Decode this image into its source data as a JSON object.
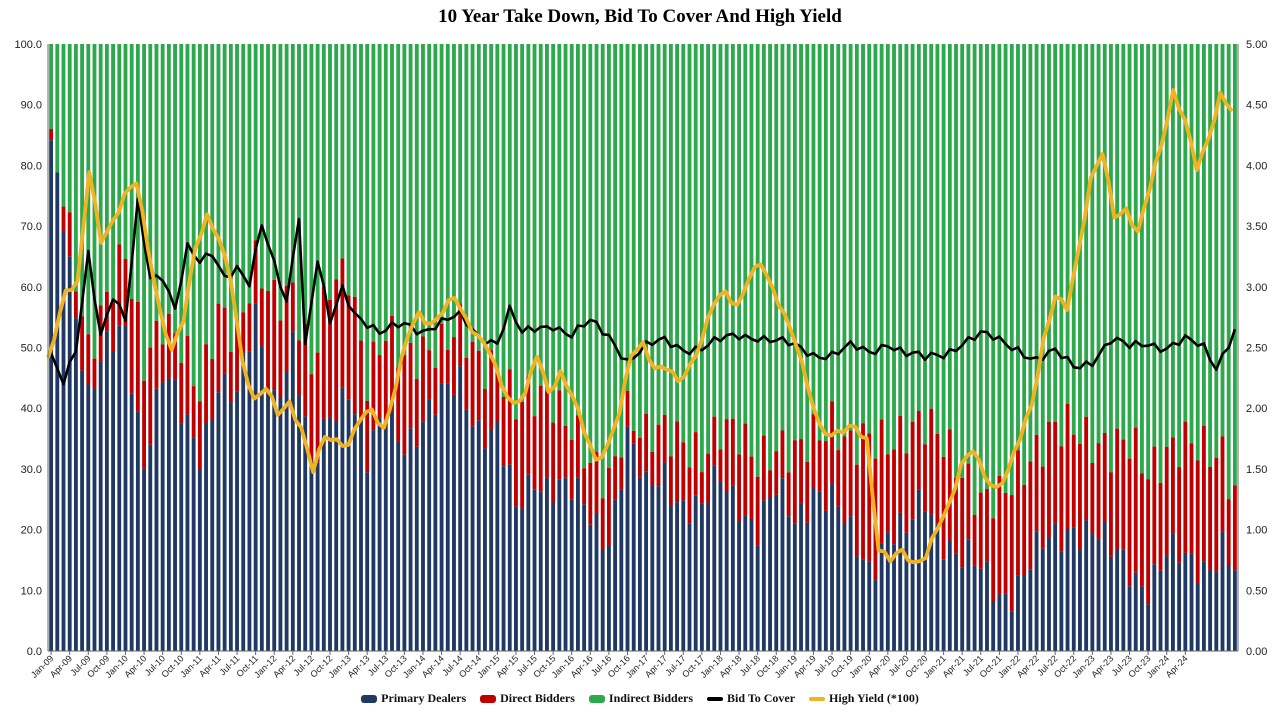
{
  "chart_data": {
    "type": "bar",
    "stacked": true,
    "title": "10 Year Take Down, Bid To Cover And High Yield",
    "y_left": {
      "min": 0,
      "max": 100,
      "ticks": [
        "0.0",
        "10.0",
        "20.0",
        "30.0",
        "40.0",
        "50.0",
        "60.0",
        "70.0",
        "80.0",
        "90.0",
        "100.0"
      ]
    },
    "y_right": {
      "min": 0,
      "max": 5,
      "ticks": [
        "0.00",
        "0.50",
        "1.00",
        "1.50",
        "2.00",
        "2.50",
        "3.00",
        "3.50",
        "4.00",
        "4.50",
        "5.00"
      ]
    },
    "x_tick_labels": [
      "Jan-09",
      "Apr-09",
      "Jul-09",
      "Oct-09",
      "Jan-10",
      "Apr-10",
      "Jul-10",
      "Oct-10",
      "Jan-11",
      "Apr-11",
      "Jul-11",
      "Oct-11",
      "Jan-12",
      "Apr-12",
      "Jul-12",
      "Oct-12",
      "Jan-13",
      "Apr-13",
      "Jul-13",
      "Oct-13",
      "Jan-14",
      "Apr-14",
      "Jul-14",
      "Oct-14",
      "Jan-15",
      "Apr-15",
      "Jul-15",
      "Oct-15",
      "Jan-16",
      "Apr-16",
      "Jul-16",
      "Oct-16",
      "Jan-17",
      "Apr-17",
      "Jul-17",
      "Oct-17",
      "Jan-18",
      "Apr-18",
      "Jul-18",
      "Oct-18",
      "Jan-19",
      "Apr-19",
      "Jul-19",
      "Oct-19",
      "Jan-20",
      "Apr-20",
      "Jul-20",
      "Oct-20",
      "Jan-21",
      "Apr-21",
      "Jul-21",
      "Oct-21",
      "Jan-22",
      "Apr-22",
      "Jul-22",
      "Oct-22",
      "Jan-23",
      "Apr-23",
      "Jul-23",
      "Oct-23",
      "Jan-24",
      "Apr-24"
    ],
    "anchors": {
      "primary_dealers": [
        [
          0,
          82
        ],
        [
          2,
          73
        ],
        [
          6,
          42
        ],
        [
          9,
          48
        ],
        [
          12,
          53
        ],
        [
          15,
          33
        ],
        [
          18,
          45
        ],
        [
          21,
          38
        ],
        [
          24,
          34
        ],
        [
          27,
          45
        ],
        [
          30,
          40
        ],
        [
          33,
          55
        ],
        [
          36,
          43
        ],
        [
          39,
          50
        ],
        [
          42,
          28
        ],
        [
          45,
          40
        ],
        [
          48,
          45
        ],
        [
          51,
          30
        ],
        [
          54,
          38
        ],
        [
          57,
          36
        ],
        [
          60,
          38
        ],
        [
          63,
          40
        ],
        [
          66,
          45
        ],
        [
          69,
          38
        ],
        [
          72,
          35
        ],
        [
          75,
          22
        ],
        [
          78,
          30
        ],
        [
          81,
          28
        ],
        [
          84,
          25
        ],
        [
          87,
          22
        ],
        [
          90,
          20
        ],
        [
          93,
          35
        ],
        [
          96,
          25
        ],
        [
          99,
          30
        ],
        [
          102,
          25
        ],
        [
          105,
          22
        ],
        [
          108,
          28
        ],
        [
          111,
          26
        ],
        [
          114,
          20
        ],
        [
          117,
          25
        ],
        [
          120,
          22
        ],
        [
          123,
          28
        ],
        [
          126,
          24
        ],
        [
          129,
          18
        ],
        [
          132,
          15
        ],
        [
          135,
          20
        ],
        [
          138,
          18
        ],
        [
          141,
          25
        ],
        [
          144,
          20
        ],
        [
          147,
          15
        ],
        [
          150,
          12
        ],
        [
          153,
          10
        ],
        [
          156,
          12
        ],
        [
          159,
          15
        ],
        [
          162,
          18
        ],
        [
          165,
          22
        ],
        [
          168,
          20
        ],
        [
          171,
          15
        ],
        [
          174,
          14
        ],
        [
          177,
          12
        ],
        [
          180,
          15
        ],
        [
          183,
          14
        ],
        [
          186,
          15
        ],
        [
          189,
          18
        ],
        [
          191,
          12
        ]
      ],
      "direct_bidders": [
        [
          0,
          0
        ],
        [
          3,
          3
        ],
        [
          6,
          8
        ],
        [
          9,
          10
        ],
        [
          12,
          12
        ],
        [
          15,
          15
        ],
        [
          18,
          10
        ],
        [
          21,
          12
        ],
        [
          24,
          8
        ],
        [
          27,
          12
        ],
        [
          30,
          12
        ],
        [
          33,
          8
        ],
        [
          36,
          15
        ],
        [
          39,
          10
        ],
        [
          42,
          18
        ],
        [
          45,
          20
        ],
        [
          48,
          18
        ],
        [
          51,
          15
        ],
        [
          54,
          14
        ],
        [
          57,
          12
        ],
        [
          60,
          12
        ],
        [
          63,
          10
        ],
        [
          66,
          8
        ],
        [
          69,
          10
        ],
        [
          72,
          12
        ],
        [
          75,
          18
        ],
        [
          78,
          12
        ],
        [
          81,
          14
        ],
        [
          84,
          12
        ],
        [
          87,
          8
        ],
        [
          90,
          8
        ],
        [
          93,
          5
        ],
        [
          96,
          10
        ],
        [
          99,
          6
        ],
        [
          102,
          10
        ],
        [
          105,
          10
        ],
        [
          108,
          8
        ],
        [
          111,
          10
        ],
        [
          114,
          12
        ],
        [
          117,
          8
        ],
        [
          120,
          10
        ],
        [
          123,
          8
        ],
        [
          126,
          14
        ],
        [
          129,
          15
        ],
        [
          132,
          20
        ],
        [
          135,
          15
        ],
        [
          138,
          18
        ],
        [
          141,
          12
        ],
        [
          144,
          15
        ],
        [
          147,
          15
        ],
        [
          150,
          12
        ],
        [
          153,
          15
        ],
        [
          156,
          18
        ],
        [
          159,
          18
        ],
        [
          162,
          18
        ],
        [
          165,
          15
        ],
        [
          168,
          15
        ],
        [
          171,
          18
        ],
        [
          174,
          20
        ],
        [
          177,
          18
        ],
        [
          180,
          18
        ],
        [
          183,
          20
        ],
        [
          186,
          18
        ],
        [
          189,
          15
        ],
        [
          191,
          14
        ]
      ],
      "bid_to_cover": [
        [
          0,
          2.4
        ],
        [
          2,
          2.2
        ],
        [
          4,
          2.5
        ],
        [
          6,
          3.3
        ],
        [
          8,
          2.6
        ],
        [
          10,
          2.9
        ],
        [
          12,
          2.7
        ],
        [
          14,
          3.7
        ],
        [
          16,
          3.1
        ],
        [
          18,
          3.1
        ],
        [
          20,
          2.8
        ],
        [
          22,
          3.3
        ],
        [
          24,
          3.2
        ],
        [
          26,
          3.3
        ],
        [
          28,
          3.1
        ],
        [
          30,
          3.15
        ],
        [
          32,
          3.0
        ],
        [
          34,
          3.5
        ],
        [
          36,
          3.2
        ],
        [
          38,
          2.9
        ],
        [
          40,
          3.6
        ],
        [
          41,
          2.5
        ],
        [
          43,
          3.2
        ],
        [
          45,
          2.7
        ],
        [
          47,
          3.0
        ],
        [
          49,
          2.8
        ],
        [
          51,
          2.7
        ],
        [
          53,
          2.6
        ],
        [
          55,
          2.65
        ],
        [
          57,
          2.7
        ],
        [
          60,
          2.65
        ],
        [
          63,
          2.7
        ],
        [
          66,
          2.75
        ],
        [
          69,
          2.6
        ],
        [
          72,
          2.55
        ],
        [
          74,
          2.8
        ],
        [
          76,
          2.6
        ],
        [
          78,
          2.65
        ],
        [
          81,
          2.7
        ],
        [
          84,
          2.6
        ],
        [
          87,
          2.7
        ],
        [
          90,
          2.6
        ],
        [
          93,
          2.4
        ],
        [
          96,
          2.5
        ],
        [
          99,
          2.55
        ],
        [
          102,
          2.5
        ],
        [
          105,
          2.5
        ],
        [
          108,
          2.55
        ],
        [
          111,
          2.6
        ],
        [
          114,
          2.6
        ],
        [
          117,
          2.55
        ],
        [
          120,
          2.5
        ],
        [
          123,
          2.45
        ],
        [
          126,
          2.45
        ],
        [
          129,
          2.5
        ],
        [
          132,
          2.45
        ],
        [
          135,
          2.55
        ],
        [
          138,
          2.45
        ],
        [
          141,
          2.4
        ],
        [
          144,
          2.45
        ],
        [
          147,
          2.55
        ],
        [
          150,
          2.6
        ],
        [
          153,
          2.55
        ],
        [
          156,
          2.5
        ],
        [
          159,
          2.4
        ],
        [
          162,
          2.45
        ],
        [
          165,
          2.35
        ],
        [
          168,
          2.4
        ],
        [
          171,
          2.55
        ],
        [
          174,
          2.5
        ],
        [
          177,
          2.55
        ],
        [
          180,
          2.5
        ],
        [
          183,
          2.55
        ],
        [
          186,
          2.5
        ],
        [
          188,
          2.35
        ],
        [
          191,
          2.65
        ]
      ],
      "high_yield": [
        [
          0,
          2.42
        ],
        [
          3,
          2.95
        ],
        [
          5,
          3.0
        ],
        [
          7,
          3.95
        ],
        [
          9,
          3.4
        ],
        [
          11,
          3.55
        ],
        [
          13,
          3.75
        ],
        [
          15,
          3.85
        ],
        [
          17,
          3.3
        ],
        [
          19,
          2.8
        ],
        [
          21,
          2.5
        ],
        [
          23,
          2.75
        ],
        [
          25,
          3.3
        ],
        [
          27,
          3.55
        ],
        [
          29,
          3.4
        ],
        [
          31,
          3.1
        ],
        [
          33,
          2.4
        ],
        [
          35,
          2.05
        ],
        [
          37,
          2.15
        ],
        [
          39,
          1.95
        ],
        [
          41,
          2.05
        ],
        [
          43,
          1.85
        ],
        [
          45,
          1.5
        ],
        [
          47,
          1.75
        ],
        [
          49,
          1.7
        ],
        [
          51,
          1.7
        ],
        [
          53,
          1.95
        ],
        [
          55,
          2.0
        ],
        [
          57,
          1.8
        ],
        [
          59,
          2.15
        ],
        [
          61,
          2.6
        ],
        [
          63,
          2.8
        ],
        [
          65,
          2.7
        ],
        [
          67,
          2.8
        ],
        [
          69,
          2.9
        ],
        [
          71,
          2.7
        ],
        [
          73,
          2.6
        ],
        [
          75,
          2.5
        ],
        [
          77,
          2.2
        ],
        [
          79,
          2.0
        ],
        [
          81,
          2.1
        ],
        [
          83,
          2.45
        ],
        [
          85,
          2.15
        ],
        [
          87,
          2.3
        ],
        [
          89,
          2.1
        ],
        [
          91,
          1.8
        ],
        [
          93,
          1.55
        ],
        [
          95,
          1.7
        ],
        [
          97,
          2.0
        ],
        [
          99,
          2.45
        ],
        [
          101,
          2.5
        ],
        [
          103,
          2.3
        ],
        [
          105,
          2.35
        ],
        [
          107,
          2.25
        ],
        [
          109,
          2.35
        ],
        [
          111,
          2.55
        ],
        [
          113,
          2.85
        ],
        [
          115,
          2.95
        ],
        [
          117,
          2.85
        ],
        [
          119,
          3.1
        ],
        [
          121,
          3.2
        ],
        [
          123,
          2.95
        ],
        [
          125,
          2.75
        ],
        [
          127,
          2.55
        ],
        [
          129,
          2.2
        ],
        [
          131,
          1.85
        ],
        [
          133,
          1.75
        ],
        [
          135,
          1.8
        ],
        [
          137,
          1.85
        ],
        [
          139,
          1.75
        ],
        [
          141,
          0.85
        ],
        [
          143,
          0.75
        ],
        [
          145,
          0.8
        ],
        [
          147,
          0.7
        ],
        [
          149,
          0.8
        ],
        [
          151,
          1.05
        ],
        [
          153,
          1.2
        ],
        [
          155,
          1.5
        ],
        [
          157,
          1.65
        ],
        [
          159,
          1.45
        ],
        [
          161,
          1.35
        ],
        [
          163,
          1.5
        ],
        [
          165,
          1.75
        ],
        [
          167,
          2.0
        ],
        [
          169,
          2.55
        ],
        [
          171,
          2.95
        ],
        [
          173,
          2.85
        ],
        [
          175,
          3.3
        ],
        [
          177,
          3.85
        ],
        [
          179,
          4.1
        ],
        [
          181,
          3.6
        ],
        [
          183,
          3.65
        ],
        [
          185,
          3.45
        ],
        [
          187,
          3.8
        ],
        [
          189,
          4.15
        ],
        [
          191,
          4.6
        ],
        [
          193,
          4.4
        ],
        [
          195,
          4.0
        ],
        [
          197,
          4.2
        ],
        [
          199,
          4.55
        ],
        [
          201,
          4.45
        ]
      ]
    }
  },
  "legend": [
    {
      "label": "Primary Dealers",
      "color": "#1f3864",
      "kind": "bar"
    },
    {
      "label": "Direct Bidders",
      "color": "#c00000",
      "kind": "bar"
    },
    {
      "label": "Indirect Bidders",
      "color": "#2ea84c",
      "kind": "bar"
    },
    {
      "label": "Bid To Cover",
      "color": "#000000",
      "kind": "line"
    },
    {
      "label": "High Yield (*100)",
      "color": "#f0b323",
      "kind": "line"
    }
  ]
}
